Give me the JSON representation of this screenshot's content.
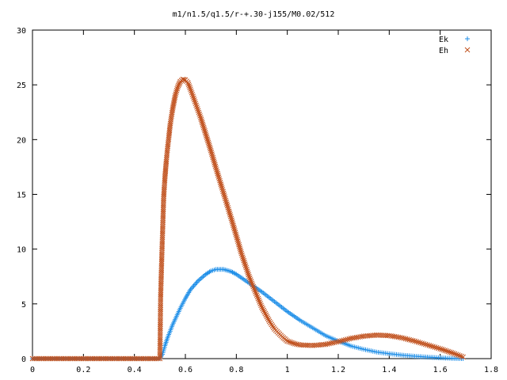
{
  "chart_data": {
    "type": "scatter",
    "title": "m1/n1.5/q1.5/r-+.30-j155/M0.02/512",
    "xlabel": "",
    "ylabel": "",
    "xlim": [
      0,
      1.8
    ],
    "ylim": [
      0,
      30
    ],
    "grid": false,
    "legend_position": "top-right",
    "x_ticks": [
      "0",
      "0.2",
      "0.4",
      "0.6",
      "0.8",
      "1",
      "1.2",
      "1.4",
      "1.6",
      "1.8"
    ],
    "y_ticks": [
      "0",
      "5",
      "10",
      "15",
      "20",
      "25",
      "30"
    ],
    "series": [
      {
        "name": "Ek",
        "marker": "plus",
        "color": "#1f8fe8",
        "points": [
          [
            0,
            0
          ],
          [
            0.1,
            0
          ],
          [
            0.2,
            0
          ],
          [
            0.3,
            0
          ],
          [
            0.4,
            0
          ],
          [
            0.5,
            0
          ],
          [
            0.51,
            0.4
          ],
          [
            0.52,
            1.2
          ],
          [
            0.53,
            1.9
          ],
          [
            0.55,
            3.1
          ],
          [
            0.58,
            4.6
          ],
          [
            0.6,
            5.5
          ],
          [
            0.62,
            6.3
          ],
          [
            0.65,
            7.1
          ],
          [
            0.68,
            7.7
          ],
          [
            0.7,
            8.0
          ],
          [
            0.72,
            8.15
          ],
          [
            0.75,
            8.15
          ],
          [
            0.78,
            7.95
          ],
          [
            0.8,
            7.7
          ],
          [
            0.85,
            6.9
          ],
          [
            0.9,
            6.1
          ],
          [
            0.95,
            5.2
          ],
          [
            1.0,
            4.3
          ],
          [
            1.05,
            3.5
          ],
          [
            1.1,
            2.8
          ],
          [
            1.15,
            2.1
          ],
          [
            1.2,
            1.6
          ],
          [
            1.25,
            1.15
          ],
          [
            1.3,
            0.85
          ],
          [
            1.35,
            0.6
          ],
          [
            1.4,
            0.45
          ],
          [
            1.45,
            0.32
          ],
          [
            1.5,
            0.22
          ],
          [
            1.55,
            0.14
          ],
          [
            1.6,
            0.07
          ],
          [
            1.65,
            0.02
          ],
          [
            1.69,
            0
          ]
        ]
      },
      {
        "name": "Eh",
        "marker": "cross",
        "color": "#c0501c",
        "points": [
          [
            0,
            0
          ],
          [
            0.1,
            0
          ],
          [
            0.2,
            0
          ],
          [
            0.3,
            0
          ],
          [
            0.4,
            0
          ],
          [
            0.5,
            0
          ],
          [
            0.503,
            5.7
          ],
          [
            0.508,
            9.7
          ],
          [
            0.512,
            12.6
          ],
          [
            0.515,
            14.8
          ],
          [
            0.52,
            16.6
          ],
          [
            0.525,
            18.0
          ],
          [
            0.53,
            19.2
          ],
          [
            0.535,
            20.2
          ],
          [
            0.54,
            21.3
          ],
          [
            0.55,
            22.8
          ],
          [
            0.56,
            24.0
          ],
          [
            0.57,
            24.8
          ],
          [
            0.58,
            25.3
          ],
          [
            0.59,
            25.5
          ],
          [
            0.6,
            25.45
          ],
          [
            0.61,
            25.2
          ],
          [
            0.62,
            24.6
          ],
          [
            0.64,
            23.3
          ],
          [
            0.66,
            22.0
          ],
          [
            0.68,
            20.5
          ],
          [
            0.7,
            19.0
          ],
          [
            0.72,
            17.4
          ],
          [
            0.75,
            15.1
          ],
          [
            0.78,
            12.8
          ],
          [
            0.8,
            11.2
          ],
          [
            0.82,
            9.6
          ],
          [
            0.85,
            7.5
          ],
          [
            0.88,
            5.8
          ],
          [
            0.9,
            4.7
          ],
          [
            0.93,
            3.4
          ],
          [
            0.95,
            2.7
          ],
          [
            0.98,
            2.0
          ],
          [
            1.0,
            1.6
          ],
          [
            1.03,
            1.35
          ],
          [
            1.05,
            1.25
          ],
          [
            1.1,
            1.2
          ],
          [
            1.15,
            1.3
          ],
          [
            1.2,
            1.55
          ],
          [
            1.25,
            1.85
          ],
          [
            1.3,
            2.05
          ],
          [
            1.35,
            2.15
          ],
          [
            1.4,
            2.1
          ],
          [
            1.45,
            1.9
          ],
          [
            1.5,
            1.6
          ],
          [
            1.55,
            1.25
          ],
          [
            1.6,
            0.9
          ],
          [
            1.65,
            0.5
          ],
          [
            1.69,
            0.15
          ]
        ]
      }
    ]
  }
}
